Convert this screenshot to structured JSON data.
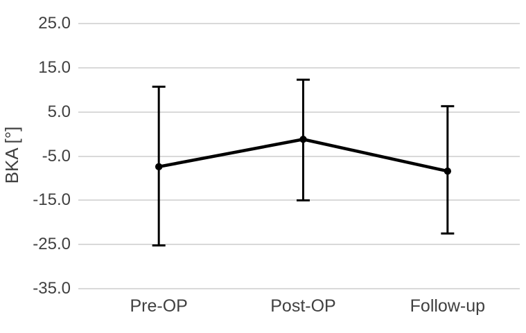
{
  "chart_data": {
    "type": "line",
    "title": "",
    "ylabel": "BKA [°]",
    "xlabel": "",
    "categories": [
      "Pre-OP",
      "Post-OP",
      "Follow-up"
    ],
    "series": [
      {
        "means": [
          -7.4,
          -1.2,
          -8.4
        ],
        "error_bar_upper": [
          10.7,
          12.3,
          6.3
        ],
        "error_bar_lower": [
          -25.2,
          -15.0,
          -22.5
        ]
      }
    ],
    "ylim": [
      -35,
      25
    ],
    "ytick_interval": 10,
    "y_tick_labels": [
      "25.0",
      "15.0",
      "5.0",
      "-5.0",
      "-15.0",
      "-25.0",
      "-35.0"
    ],
    "grid": "horizontal-only",
    "legend_position": "none",
    "marker": "filled-circle",
    "colors": {
      "series": "#000000",
      "gridlines": "#d9d9d9",
      "text": "#404040",
      "background": "#ffffff"
    }
  }
}
